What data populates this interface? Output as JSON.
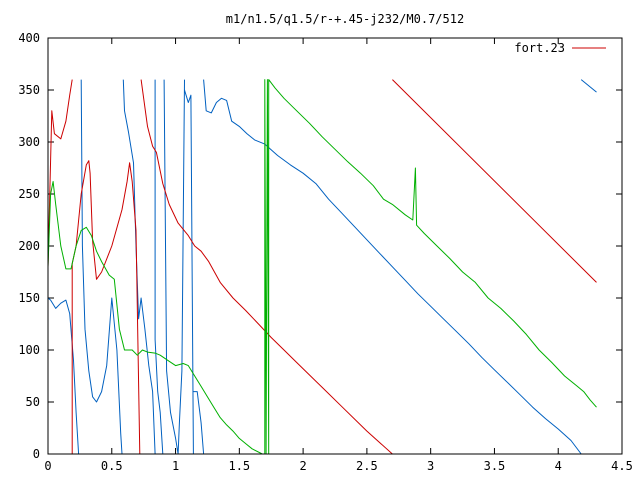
{
  "chart_data": {
    "type": "line",
    "title": "m1/n1.5/q1.5/r-+.45-j232/M0.7/512",
    "xlabel": "",
    "ylabel": "",
    "xlim": [
      0,
      4.5
    ],
    "ylim": [
      0,
      400
    ],
    "x_ticks": [
      "0",
      "0.5",
      "1",
      "1.5",
      "2",
      "2.5",
      "3",
      "3.5",
      "4",
      "4.5"
    ],
    "y_ticks": [
      "0",
      "50",
      "100",
      "150",
      "200",
      "250",
      "300",
      "350",
      "400"
    ],
    "legend": {
      "placement": "top-right",
      "entries": [
        "fort.23"
      ]
    },
    "grid": false,
    "series": [
      {
        "name": "fort.23",
        "color": "#cc0000",
        "points": [
          [
            0.0,
            360
          ],
          [
            0.0,
            180
          ],
          [
            0.03,
            330
          ],
          [
            0.05,
            308
          ],
          [
            0.1,
            303
          ],
          [
            0.14,
            320
          ],
          [
            0.17,
            345
          ],
          [
            0.19,
            360
          ],
          null,
          [
            0.19,
            0
          ],
          [
            0.19,
            183
          ],
          [
            0.22,
            200
          ],
          [
            0.26,
            250
          ],
          [
            0.3,
            278
          ],
          [
            0.32,
            282
          ],
          [
            0.33,
            270
          ],
          [
            0.35,
            205
          ],
          [
            0.38,
            168
          ],
          [
            0.42,
            175
          ],
          [
            0.5,
            200
          ],
          [
            0.58,
            235
          ],
          [
            0.62,
            262
          ],
          [
            0.64,
            280
          ],
          [
            0.66,
            262
          ],
          [
            0.69,
            215
          ],
          [
            0.72,
            0
          ],
          null,
          [
            0.73,
            360
          ],
          [
            0.78,
            315
          ],
          [
            0.82,
            296
          ],
          [
            0.85,
            290
          ],
          [
            0.9,
            260
          ],
          [
            0.95,
            240
          ],
          [
            1.02,
            222
          ],
          [
            1.1,
            210
          ],
          [
            1.15,
            200
          ],
          [
            1.2,
            195
          ],
          [
            1.26,
            185
          ],
          [
            1.35,
            165
          ],
          [
            1.45,
            150
          ],
          [
            1.55,
            138
          ],
          [
            1.65,
            125
          ],
          [
            1.75,
            112
          ],
          [
            1.85,
            100
          ],
          [
            1.95,
            88
          ],
          [
            2.05,
            76
          ],
          [
            2.15,
            64
          ],
          [
            2.3,
            46
          ],
          [
            2.5,
            22
          ],
          [
            2.7,
            0
          ],
          null,
          [
            2.7,
            360
          ],
          [
            4.3,
            165
          ]
        ]
      },
      {
        "name": "",
        "color": "#0060c0",
        "points": [
          [
            0.0,
            0
          ],
          [
            0.0,
            150
          ],
          [
            0.02,
            148
          ],
          [
            0.06,
            140
          ],
          [
            0.1,
            145
          ],
          [
            0.14,
            148
          ],
          [
            0.17,
            135
          ],
          [
            0.2,
            90
          ],
          [
            0.22,
            40
          ],
          [
            0.24,
            0
          ],
          null,
          [
            0.26,
            360
          ],
          [
            0.27,
            200
          ],
          [
            0.29,
            120
          ],
          [
            0.32,
            80
          ],
          [
            0.35,
            55
          ],
          [
            0.38,
            50
          ],
          [
            0.42,
            60
          ],
          [
            0.46,
            85
          ],
          [
            0.5,
            150
          ],
          [
            0.54,
            100
          ],
          [
            0.57,
            20
          ],
          [
            0.58,
            0
          ],
          null,
          [
            0.59,
            360
          ],
          [
            0.6,
            330
          ],
          [
            0.63,
            310
          ],
          [
            0.67,
            280
          ],
          [
            0.69,
            200
          ],
          [
            0.71,
            130
          ],
          [
            0.73,
            150
          ],
          [
            0.76,
            120
          ],
          [
            0.79,
            85
          ],
          [
            0.82,
            60
          ],
          [
            0.84,
            0
          ],
          null,
          [
            0.84,
            360
          ],
          [
            0.84,
            110
          ],
          [
            0.86,
            60
          ],
          [
            0.88,
            40
          ],
          [
            0.9,
            0
          ],
          null,
          [
            0.91,
            360
          ],
          [
            0.93,
            80
          ],
          [
            0.96,
            40
          ],
          [
            1.0,
            15
          ],
          [
            1.02,
            0
          ],
          null,
          [
            1.02,
            0
          ],
          [
            1.03,
            30
          ],
          [
            1.05,
            80
          ],
          [
            1.07,
            360
          ],
          null,
          [
            1.07,
            350
          ],
          [
            1.1,
            338
          ],
          [
            1.12,
            345
          ],
          [
            1.14,
            0
          ],
          null,
          [
            1.14,
            60
          ],
          [
            1.17,
            60
          ],
          [
            1.2,
            30
          ],
          [
            1.22,
            0
          ],
          null,
          [
            1.22,
            360
          ],
          [
            1.24,
            330
          ],
          [
            1.28,
            328
          ],
          [
            1.32,
            338
          ],
          [
            1.36,
            342
          ],
          [
            1.4,
            340
          ],
          [
            1.44,
            320
          ],
          [
            1.5,
            315
          ],
          [
            1.56,
            308
          ],
          [
            1.62,
            302
          ],
          [
            1.7,
            298
          ],
          [
            1.8,
            287
          ],
          [
            1.9,
            278
          ],
          [
            2.0,
            270
          ],
          [
            2.1,
            260
          ],
          [
            2.2,
            245
          ],
          [
            2.3,
            232
          ],
          [
            2.4,
            219
          ],
          [
            2.5,
            206
          ],
          [
            2.6,
            193
          ],
          [
            2.7,
            180
          ],
          [
            2.8,
            167
          ],
          [
            2.9,
            154
          ],
          [
            3.0,
            142
          ],
          [
            3.1,
            130
          ],
          [
            3.2,
            118
          ],
          [
            3.3,
            106
          ],
          [
            3.4,
            93
          ],
          [
            3.5,
            81
          ],
          [
            3.6,
            69
          ],
          [
            3.7,
            57
          ],
          [
            3.8,
            45
          ],
          [
            3.9,
            34
          ],
          [
            4.0,
            24
          ],
          [
            4.1,
            13
          ],
          [
            4.18,
            0
          ],
          null,
          [
            4.18,
            360
          ],
          [
            4.3,
            348
          ]
        ]
      },
      {
        "name": "",
        "color": "#00b000",
        "points": [
          [
            0.0,
            180
          ],
          [
            0.02,
            250
          ],
          [
            0.04,
            262
          ],
          [
            0.06,
            240
          ],
          [
            0.1,
            200
          ],
          [
            0.14,
            178
          ],
          [
            0.18,
            178
          ],
          [
            0.22,
            200
          ],
          [
            0.26,
            215
          ],
          [
            0.3,
            218
          ],
          [
            0.34,
            210
          ],
          [
            0.38,
            195
          ],
          [
            0.42,
            185
          ],
          [
            0.48,
            172
          ],
          [
            0.52,
            168
          ],
          [
            0.56,
            120
          ],
          [
            0.6,
            100
          ],
          [
            0.66,
            100
          ],
          [
            0.7,
            95
          ],
          [
            0.74,
            100
          ],
          [
            0.78,
            98
          ],
          [
            0.84,
            97
          ],
          [
            0.88,
            95
          ],
          [
            0.94,
            90
          ],
          [
            1.0,
            85
          ],
          [
            1.06,
            87
          ],
          [
            1.1,
            85
          ],
          [
            1.15,
            75
          ],
          [
            1.2,
            65
          ],
          [
            1.25,
            55
          ],
          [
            1.3,
            45
          ],
          [
            1.35,
            35
          ],
          [
            1.4,
            28
          ],
          [
            1.45,
            22
          ],
          [
            1.5,
            15
          ],
          [
            1.55,
            10
          ],
          [
            1.6,
            5
          ],
          [
            1.68,
            0
          ],
          null,
          [
            1.7,
            0
          ],
          [
            1.7,
            360
          ],
          [
            1.71,
            0
          ],
          [
            1.72,
            360
          ],
          [
            1.73,
            0
          ],
          [
            1.73,
            360
          ],
          [
            1.78,
            352
          ],
          [
            1.85,
            342
          ],
          [
            1.95,
            330
          ],
          [
            2.05,
            318
          ],
          [
            2.15,
            305
          ],
          [
            2.25,
            293
          ],
          [
            2.35,
            281
          ],
          [
            2.45,
            270
          ],
          [
            2.55,
            258
          ],
          [
            2.63,
            245
          ],
          [
            2.7,
            240
          ],
          [
            2.8,
            230
          ],
          [
            2.86,
            225
          ],
          [
            2.88,
            275
          ],
          [
            2.89,
            220
          ],
          [
            2.95,
            212
          ],
          [
            3.05,
            200
          ],
          [
            3.15,
            188
          ],
          [
            3.25,
            175
          ],
          [
            3.35,
            165
          ],
          [
            3.45,
            150
          ],
          [
            3.55,
            140
          ],
          [
            3.65,
            128
          ],
          [
            3.75,
            115
          ],
          [
            3.85,
            100
          ],
          [
            3.95,
            88
          ],
          [
            4.05,
            75
          ],
          [
            4.15,
            65
          ],
          [
            4.2,
            60
          ],
          [
            4.25,
            52
          ],
          [
            4.3,
            45
          ]
        ]
      }
    ]
  }
}
